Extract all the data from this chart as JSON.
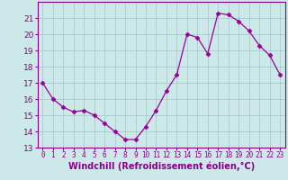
{
  "x": [
    0,
    1,
    2,
    3,
    4,
    5,
    6,
    7,
    8,
    9,
    10,
    11,
    12,
    13,
    14,
    15,
    16,
    17,
    18,
    19,
    20,
    21,
    22,
    23
  ],
  "y": [
    17.0,
    16.0,
    15.5,
    15.2,
    15.3,
    15.0,
    14.5,
    14.0,
    13.5,
    13.5,
    14.3,
    15.3,
    16.5,
    17.5,
    20.0,
    19.8,
    18.8,
    21.3,
    21.2,
    20.8,
    20.2,
    19.3,
    18.7,
    17.5
  ],
  "line_color": "#990099",
  "marker": "D",
  "marker_size": 2.5,
  "bg_color": "#cce8e8",
  "grid_color": "#aacccc",
  "xlabel": "Windchill (Refroidissement éolien,°C)",
  "xlabel_fontsize": 7,
  "tick_fontsize": 6.5,
  "label_color": "#880088",
  "ylim": [
    13,
    22
  ],
  "xlim": [
    -0.5,
    23.5
  ],
  "yticks": [
    13,
    14,
    15,
    16,
    17,
    18,
    19,
    20,
    21
  ],
  "xticks": [
    0,
    1,
    2,
    3,
    4,
    5,
    6,
    7,
    8,
    9,
    10,
    11,
    12,
    13,
    14,
    15,
    16,
    17,
    18,
    19,
    20,
    21,
    22,
    23
  ]
}
